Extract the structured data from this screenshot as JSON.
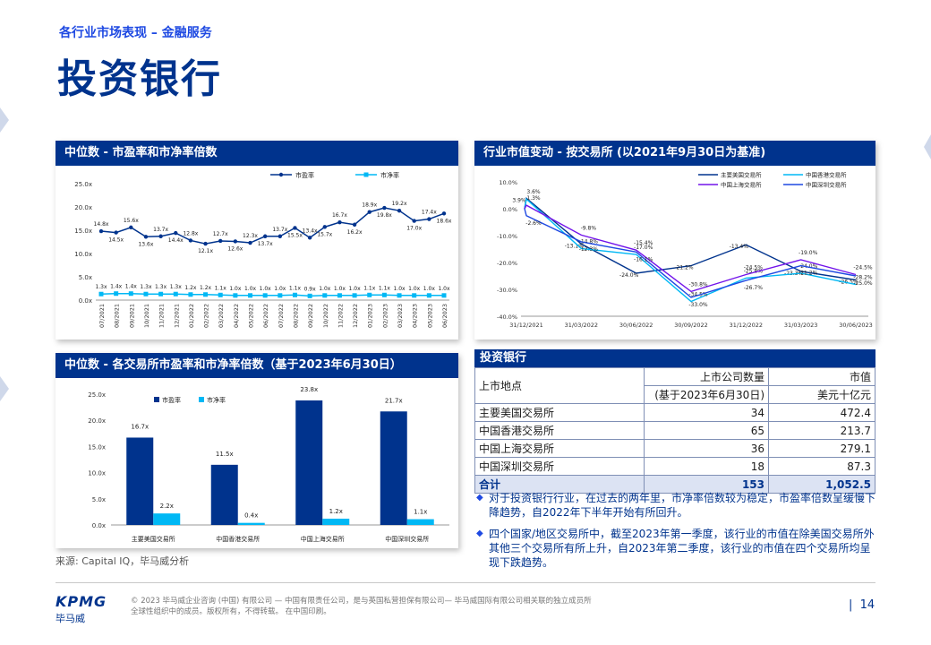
{
  "header": {
    "section": "各行业市场表现 – 金融服务",
    "title": "投资银行"
  },
  "chart1": {
    "title": "中位数 - 市盈率和市净率倍数",
    "chart_data": {
      "type": "line",
      "categories": [
        "07/2021",
        "08/2021",
        "09/2021",
        "10/2021",
        "11/2021",
        "12/2021",
        "01/2022",
        "02/2022",
        "03/2022",
        "04/2022",
        "05/2022",
        "06/2022",
        "07/2022",
        "08/2022",
        "09/2022",
        "10/2022",
        "11/2022",
        "12/2022",
        "01/2023",
        "02/2023",
        "03/2023",
        "04/2023",
        "05/2023",
        "06/2023"
      ],
      "series": [
        {
          "name": "市盈率",
          "color": "#00338d",
          "values": [
            14.8,
            14.5,
            15.6,
            13.6,
            13.7,
            14.4,
            12.8,
            12.1,
            12.7,
            12.6,
            12.3,
            13.7,
            13.7,
            15.5,
            13.4,
            15.7,
            16.7,
            16.2,
            18.9,
            19.8,
            19.2,
            17.0,
            17.4,
            18.6
          ],
          "labels": [
            "14.8x",
            "14.5x",
            "15.6x",
            "13.6x",
            "13.7x",
            "14.4x",
            "12.8x",
            "12.1x",
            "12.7x",
            "12.6x",
            "12.3x",
            "13.7x",
            "13.7x",
            "15.5x",
            "13.4x",
            "15.7x",
            "16.7x",
            "16.2x",
            "18.9x",
            "19.8x",
            "19.2x",
            "17.0x",
            "17.4x",
            "18.6x"
          ]
        },
        {
          "name": "市净率",
          "color": "#00b8f5",
          "values": [
            1.3,
            1.4,
            1.4,
            1.3,
            1.3,
            1.3,
            1.2,
            1.2,
            1.1,
            1.0,
            1.0,
            1.0,
            1.0,
            1.1,
            0.9,
            1.0,
            1.0,
            1.0,
            1.1,
            1.1,
            1.0,
            1.0,
            1.0,
            1.0
          ],
          "labels": [
            "1.3x",
            "1.4x",
            "1.4x",
            "1.3x",
            "1.3x",
            "1.3x",
            "1.2x",
            "1.2x",
            "1.1x",
            "1.0x",
            "1.0x",
            "1.0x",
            "1.0x",
            "1.1x",
            "0.9x",
            "1.0x",
            "1.0x",
            "1.0x",
            "1.1x",
            "1.1x",
            "1.0x",
            "1.0x",
            "1.0x",
            "1.0x"
          ]
        }
      ],
      "yticks": [
        "0.0x",
        "5.0x",
        "10.0x",
        "15.0x",
        "20.0x",
        "25.0x"
      ],
      "ylim": [
        0,
        25
      ],
      "legend": "top"
    }
  },
  "chart2": {
    "title": "行业市值变动 - 按交易所 (以2021年9月30日为基准)",
    "chart_data": {
      "type": "line",
      "x": [
        "31/12/2021",
        "31/03/2022",
        "30/06/2022",
        "30/09/2022",
        "31/12/2022",
        "31/03/2023",
        "30/06/2023"
      ],
      "yticks": [
        "10.0%",
        "0.0%",
        "-10.0%",
        "-20.0%",
        "-30.0%",
        "-40.0%"
      ],
      "ylim": [
        -40,
        10
      ],
      "legend": "top-right",
      "series": [
        {
          "name": "主要美国交易所",
          "color": "#00338d",
          "values": [
            3.9,
            -13.1,
            -24.0,
            -21.2,
            -13.4,
            -23.3,
            -26.5
          ],
          "labels": [
            "3.9%",
            "-13.1%",
            "-24.0%",
            "-21.2%",
            "-13.4%",
            "-23.3%",
            "-26.5%"
          ]
        },
        {
          "name": "中国香港交易所",
          "color": "#00b8f5",
          "values": [
            3.6,
            -14.8,
            -17.0,
            -34.5,
            -25.8,
            -24.0,
            -28.2
          ],
          "labels": [
            "3.6%",
            "-14.8%",
            "-17.0%",
            "-34.5%",
            "-25.8%",
            "-24.0%",
            "-28.2%"
          ]
        },
        {
          "name": "中国上海交易所",
          "color": "#7213ea",
          "values": [
            1.3,
            -9.8,
            -15.4,
            -30.8,
            -24.5,
            -19.0,
            -24.5
          ],
          "labels": [
            "1.3%",
            "-9.8%",
            "-15.4%",
            "-30.8%",
            "-24.5%",
            "-19.0%",
            "-24.5%"
          ]
        },
        {
          "name": "中国深圳交易所",
          "color": "#1e49e2",
          "values": [
            -2.6,
            -12.3,
            -16.1,
            -33.0,
            -26.7,
            -21.2,
            -25.0
          ],
          "labels": [
            "-2.6%",
            "-12.3%",
            "-16.1%",
            "-33.0%",
            "-26.7%",
            "-21.2%",
            "-25.0%"
          ]
        }
      ]
    }
  },
  "chart3": {
    "title": "中位数 - 各交易所市盈率和市净率倍数（基于2023年6月30日）",
    "chart_data": {
      "type": "bar",
      "categories": [
        "主要美国交易所",
        "中国香港交易所",
        "中国上海交易所",
        "中国深圳交易所"
      ],
      "series": [
        {
          "name": "市盈率",
          "color": "#00338d",
          "values": [
            16.7,
            11.5,
            23.8,
            21.7
          ],
          "labels": [
            "16.7x",
            "11.5x",
            "23.8x",
            "21.7x"
          ]
        },
        {
          "name": "市净率",
          "color": "#00b8f5",
          "values": [
            2.2,
            0.4,
            1.2,
            1.1
          ],
          "labels": [
            "2.2x",
            "0.4x",
            "1.2x",
            "1.1x"
          ]
        }
      ],
      "yticks": [
        "0.0x",
        "5.0x",
        "10.0x",
        "15.0x",
        "20.0x",
        "25.0x"
      ],
      "ylim": [
        0,
        25
      ],
      "legend": "top-left"
    }
  },
  "table": {
    "title": "投资银行",
    "col_location": "上市地点",
    "col_count": "上市公司数量",
    "col_count_sub": "(基于2023年6月30日)",
    "col_value": "市值",
    "col_value_unit": "美元十亿元",
    "rows": [
      {
        "location": "主要美国交易所",
        "count": "34",
        "value": "472.4"
      },
      {
        "location": "中国香港交易所",
        "count": "65",
        "value": "213.7"
      },
      {
        "location": "中国上海交易所",
        "count": "36",
        "value": "279.1"
      },
      {
        "location": "中国深圳交易所",
        "count": "18",
        "value": "87.3"
      }
    ],
    "total": {
      "location": "合计",
      "count": "153",
      "value": "1,052.5"
    }
  },
  "bullets": [
    "对于投资银行行业，在过去的两年里，市净率倍数较为稳定，市盈率倍数呈缓慢下降趋势，自2022年下半年开始有所回升。",
    "四个国家/地区交易所中，截至2023年第一季度，该行业的市值在除美国交易所外其他三个交易所有所上升，自2023年第二季度，该行业的市值在四个交易所均呈现下跌趋势。"
  ],
  "source": "来源: Capital IQ，毕马威分析",
  "footer": {
    "logo": "KPMG",
    "logo_sub": "毕马威",
    "copyright": "© 2023 毕马威企业咨询 (中国) 有限公司 — 中国有限责任公司，是与英国私营担保有限公司— 毕马威国际有限公司相关联的独立成员所全球性组织中的成员。版权所有，不得转载。 在中国印刷。",
    "page": "14"
  }
}
